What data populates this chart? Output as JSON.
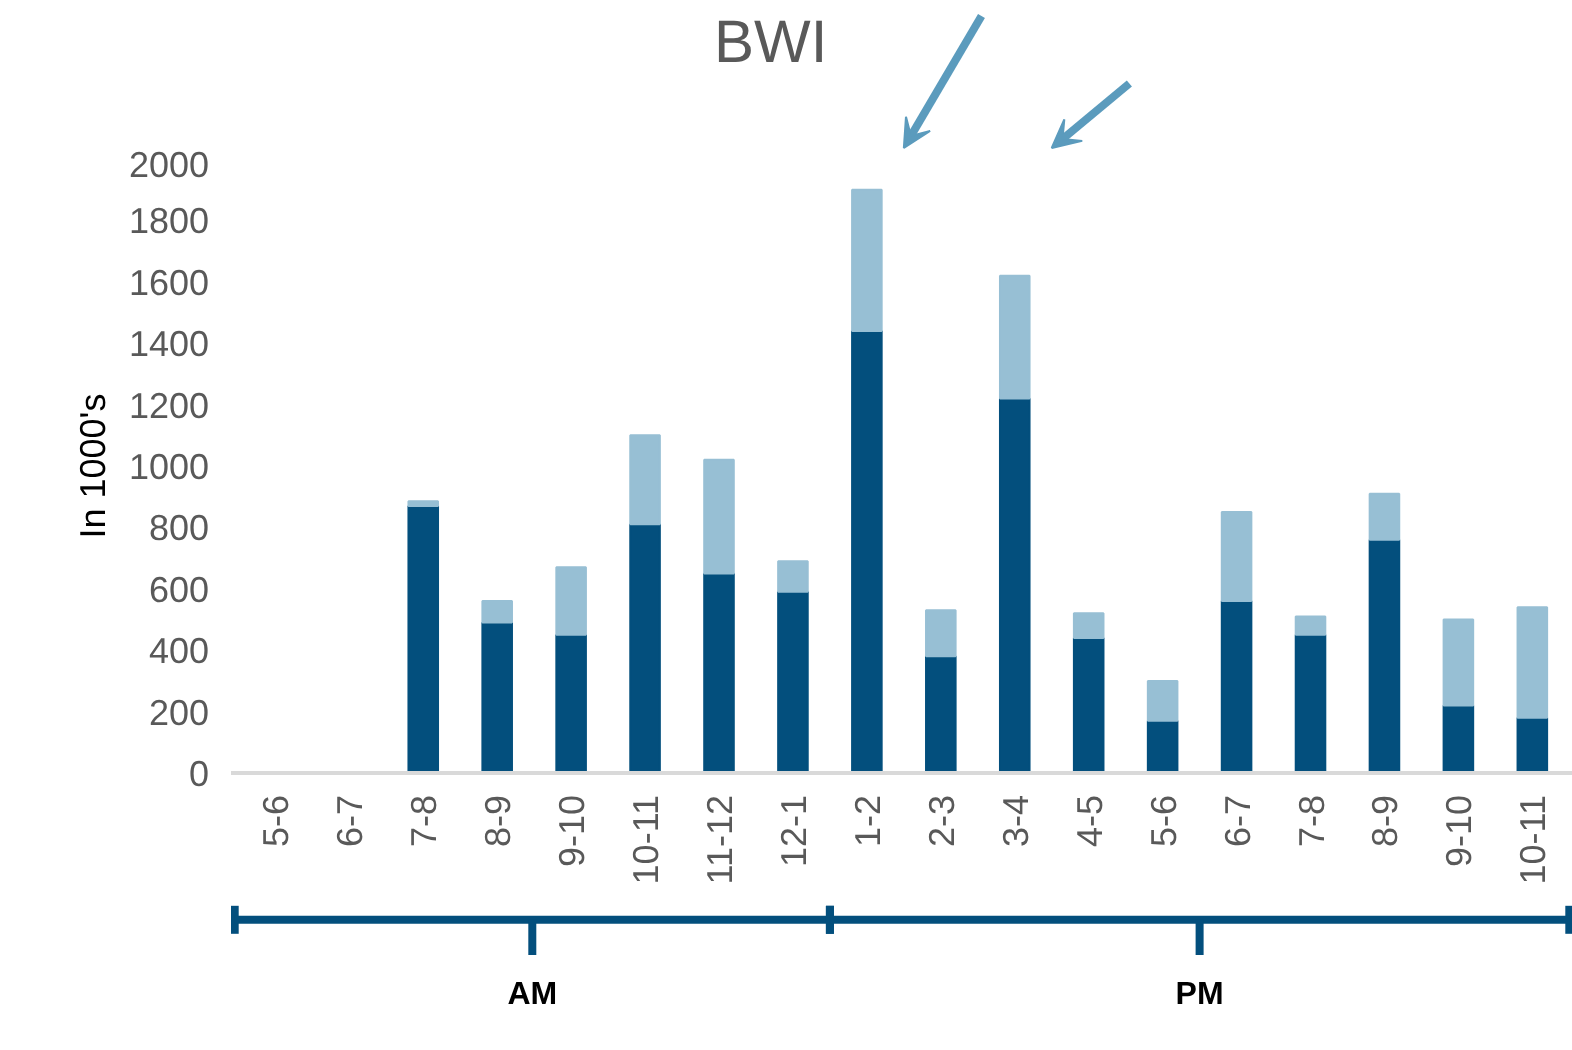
{
  "chart_data": {
    "type": "bar",
    "stacked": true,
    "ylabel": "In 1000's",
    "categories": [
      "5-6",
      "6-7",
      "7-8",
      "8-9",
      "9-10",
      "10-11",
      "11-12",
      "12-1",
      "1-2",
      "2-3",
      "3-4",
      "4-5",
      "5-6",
      "6-7",
      "7-8",
      "8-9",
      "9-10",
      "10-11"
    ],
    "series": [
      {
        "color": "#034f7d",
        "values": [
          0,
          0,
          870,
          490,
          450,
          810,
          650,
          590,
          1440,
          380,
          1220,
          440,
          170,
          560,
          450,
          760,
          220,
          180
        ]
      },
      {
        "color": "#97bfd4",
        "values": [
          0,
          0,
          15,
          70,
          220,
          290,
          370,
          100,
          460,
          150,
          400,
          80,
          130,
          290,
          60,
          150,
          280,
          360
        ]
      }
    ],
    "ylim": [
      0,
      2000
    ],
    "yticks": [
      0,
      200,
      400,
      600,
      800,
      1000,
      1200,
      1400,
      1600,
      1800,
      2000
    ],
    "grid": false,
    "annotations": [
      "BWI",
      "AM",
      "PM"
    ]
  }
}
